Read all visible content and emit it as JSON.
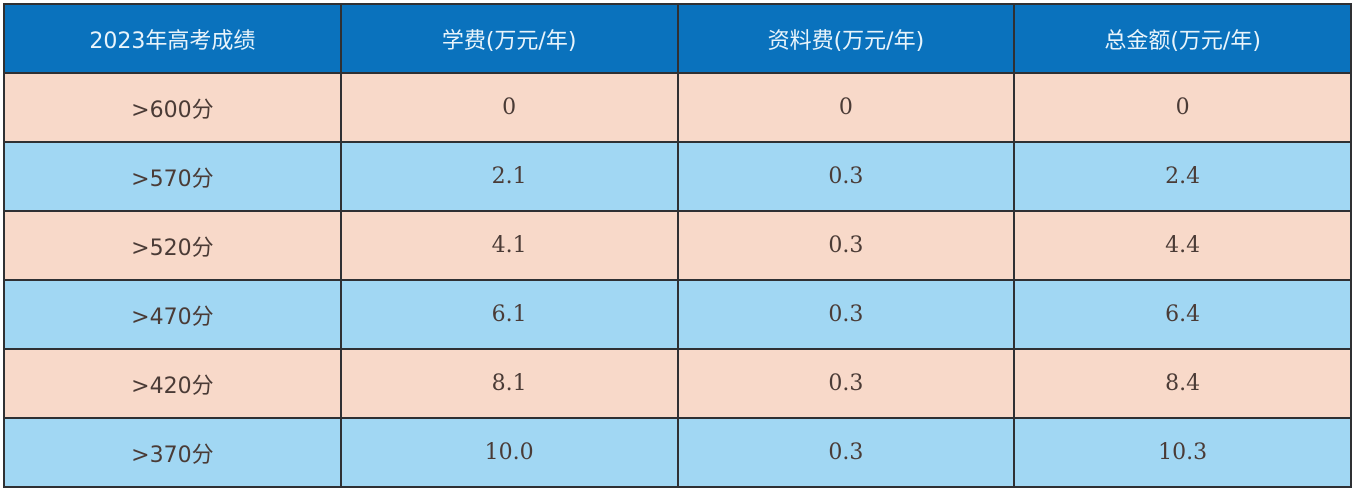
{
  "table": {
    "headers": [
      "2023年高考成绩",
      "学费(万元/年)",
      "资料费(万元/年)",
      "总金额(万元/年)"
    ],
    "rows": [
      [
        ">600分",
        "0",
        "0",
        "0"
      ],
      [
        ">570分",
        "2.1",
        "0.3",
        "2.4"
      ],
      [
        ">520分",
        "4.1",
        "0.3",
        "4.4"
      ],
      [
        ">470分",
        "6.1",
        "0.3",
        "6.4"
      ],
      [
        ">420分",
        "8.1",
        "0.3",
        "8.4"
      ],
      [
        ">370分",
        "10.0",
        "0.3",
        "10.3"
      ]
    ],
    "colors": {
      "header": "#0a72bd",
      "row_odd": "#f8d9c9",
      "row_even": "#a1d7f3"
    }
  }
}
